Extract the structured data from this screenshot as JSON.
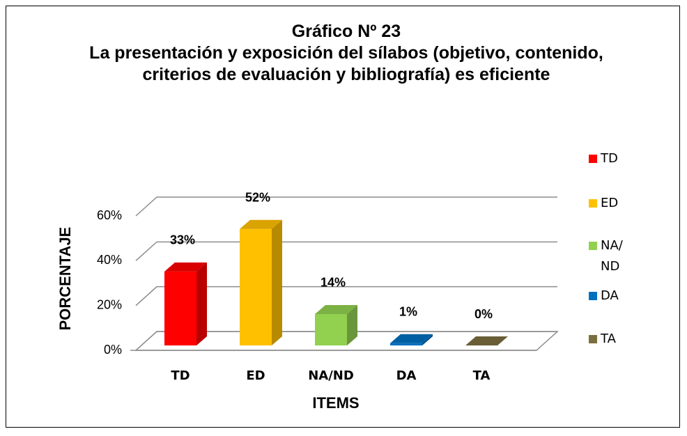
{
  "chart_data": {
    "type": "bar3d",
    "title": "Gráfico Nº 23",
    "subtitle": "La presentación y exposición del sílabos (objetivo, contenido, criterios de evaluación y bibliografía) es eficiente",
    "x_label": "ITEMS",
    "y_label": "PORCENTAJE",
    "categories": [
      "TD",
      "ED",
      "NA/ND",
      "DA",
      "TA"
    ],
    "values": [
      33,
      52,
      14,
      1,
      0
    ],
    "value_labels": [
      "33%",
      "52%",
      "14%",
      "1%",
      "0%"
    ],
    "colors": [
      "#ff0000",
      "#ffc000",
      "#92d050",
      "#0070c0",
      "#7b6f3f"
    ],
    "ylim": [
      0,
      60
    ],
    "yticks": [
      {
        "value": 0,
        "label": "0%"
      },
      {
        "value": 20,
        "label": "20%"
      },
      {
        "value": 40,
        "label": "40%"
      },
      {
        "value": 60,
        "label": "60%"
      }
    ],
    "grid": true,
    "legend": "right"
  }
}
